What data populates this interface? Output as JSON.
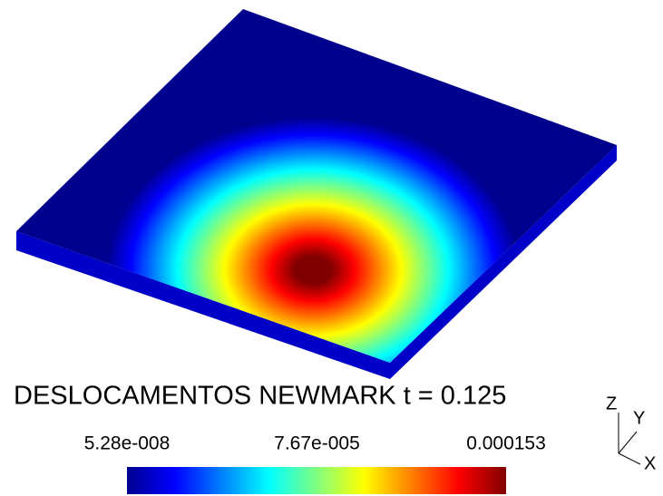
{
  "chart_data": {
    "type": "contour",
    "title": "DESLOCAMENTOS NEWMARK t = 0.125",
    "colormap": [
      "#00008f",
      "#0000ff",
      "#0080ff",
      "#00ffff",
      "#80ff80",
      "#ffff00",
      "#ff8000",
      "#ff0000",
      "#800000"
    ],
    "clim": [
      5.28e-08,
      0.000153
    ],
    "cticks": [
      {
        "value": 5.28e-08,
        "label": "5.28e-008"
      },
      {
        "value": 7.67e-05,
        "label": "7.67e-005"
      },
      {
        "value": 0.000153,
        "label": "0.000153"
      }
    ],
    "axis_labels": {
      "z": "Z",
      "y": "Y",
      "x": "X"
    }
  }
}
